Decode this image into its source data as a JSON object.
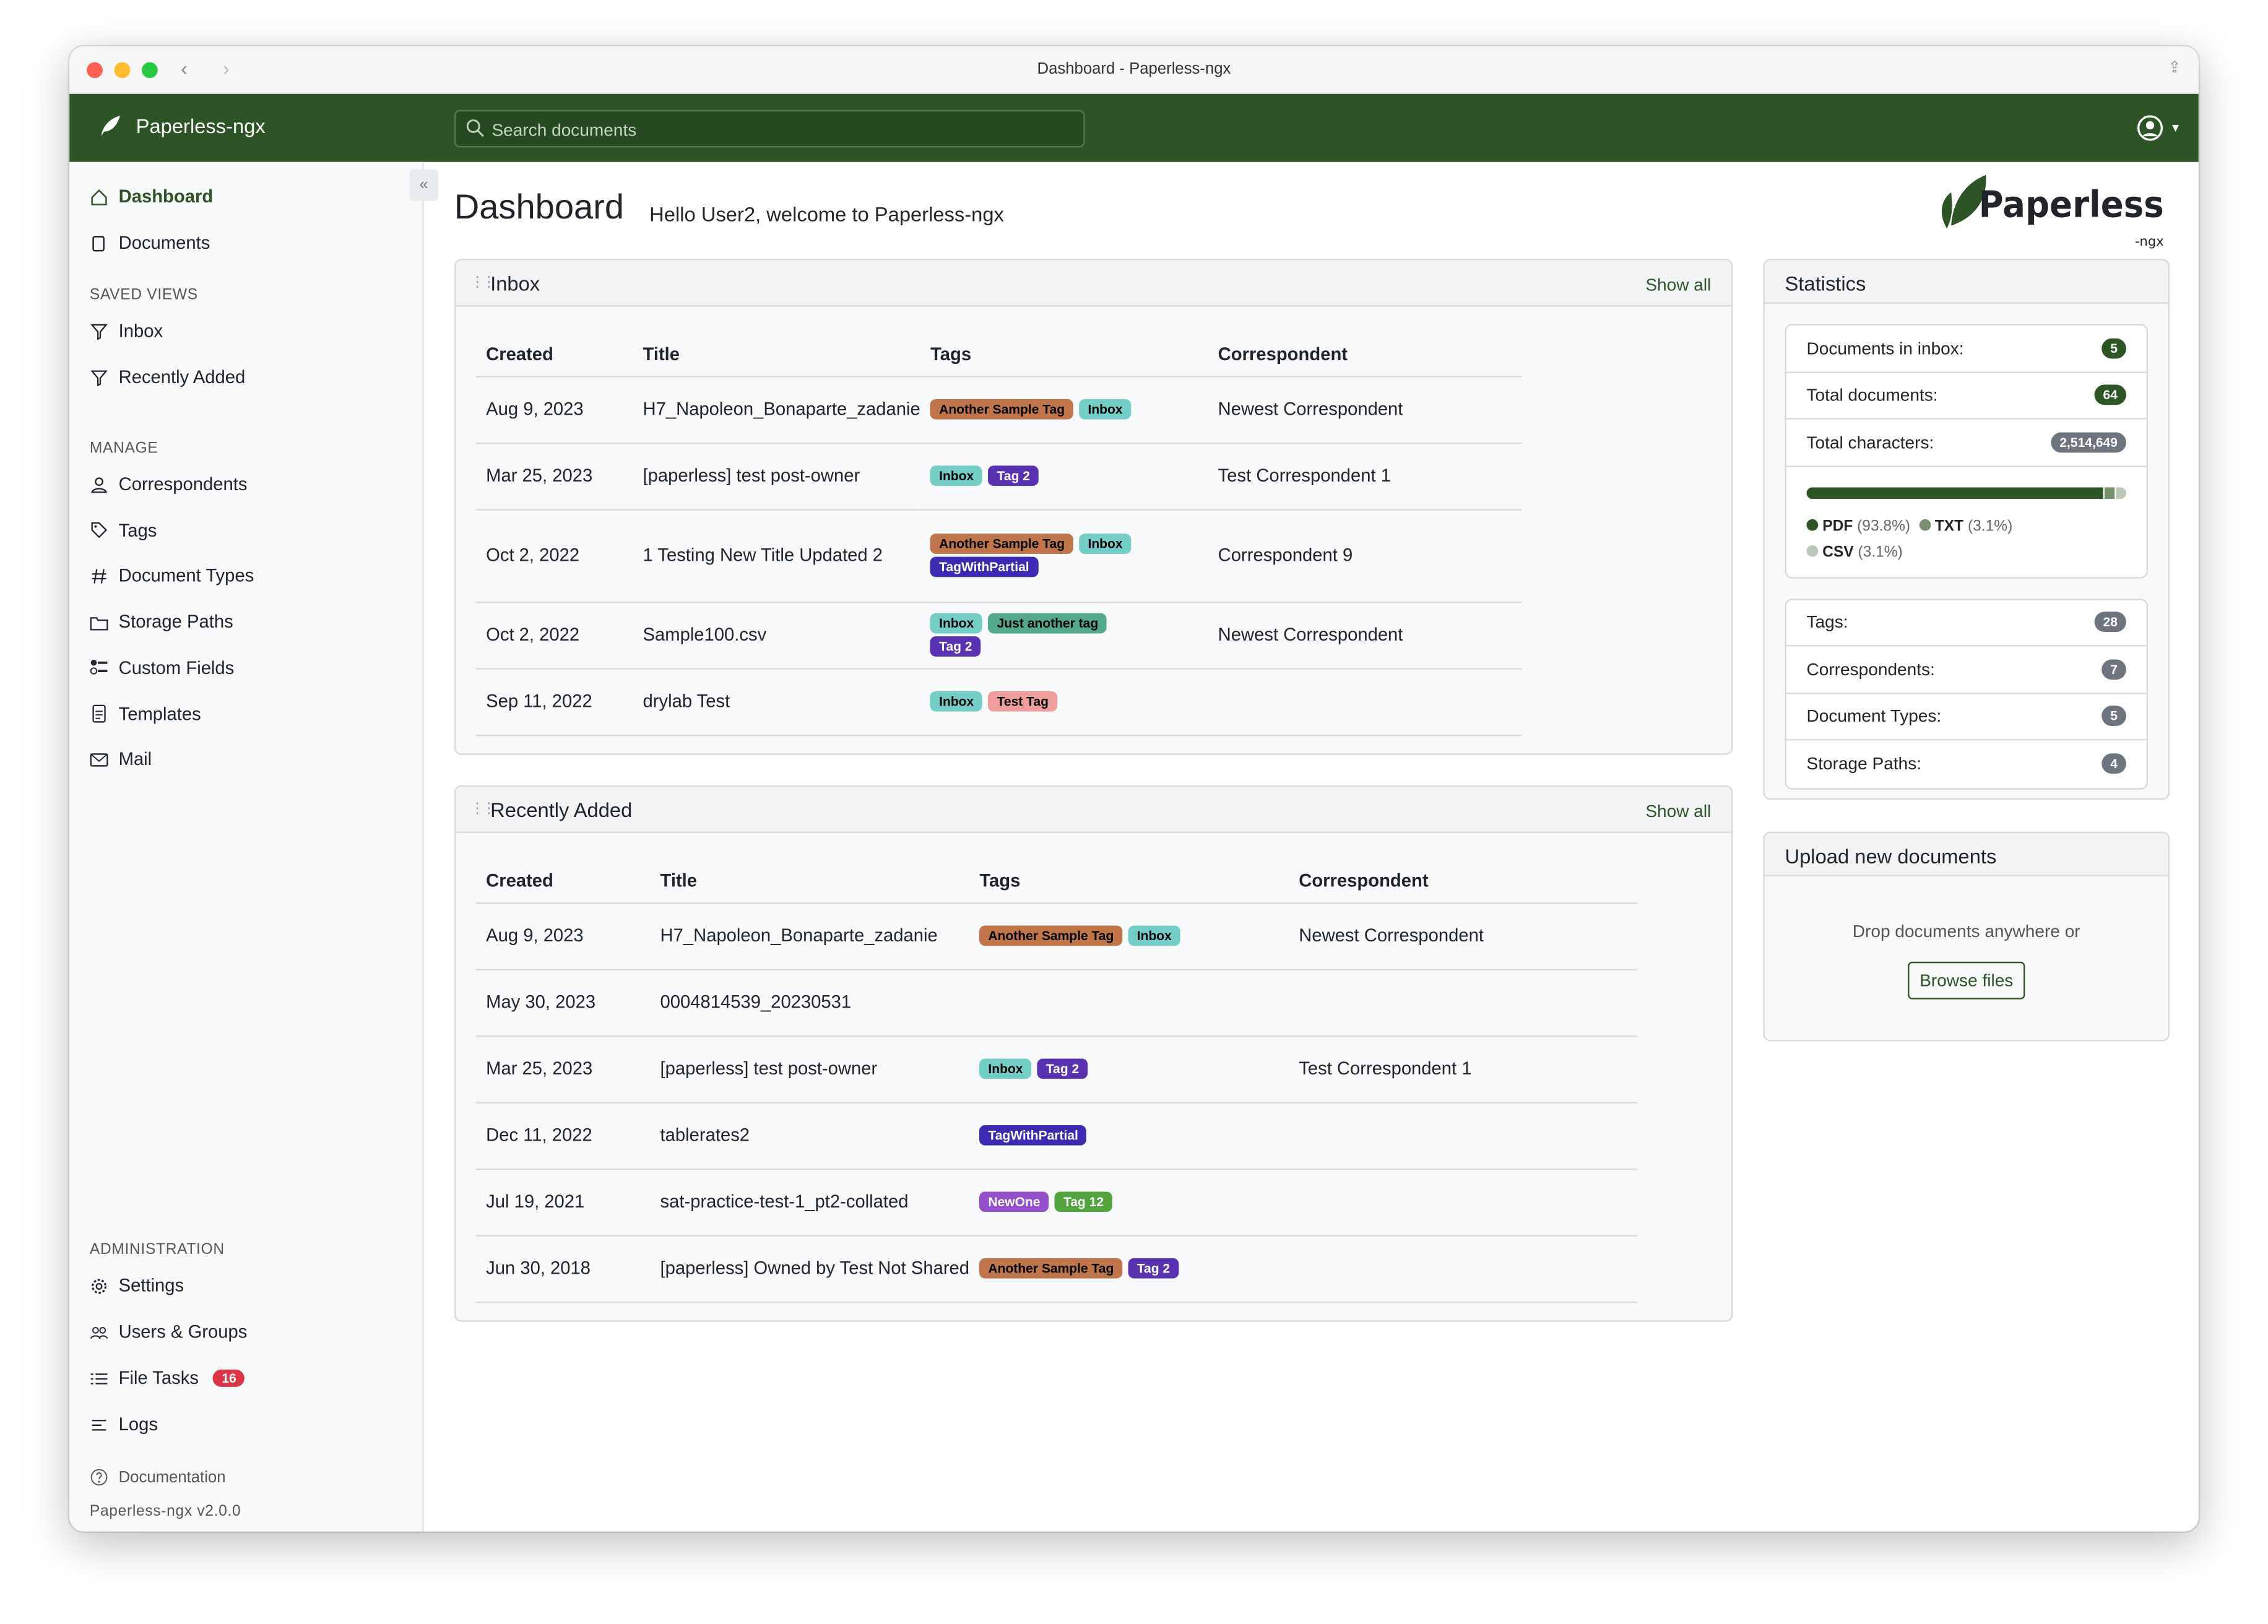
{
  "window": {
    "title": "Dashboard - Paperless-ngx"
  },
  "header": {
    "brand": "Paperless-ngx",
    "search_placeholder": "Search documents"
  },
  "sidebar": {
    "items": [
      {
        "label": "Dashboard",
        "icon": "house-icon",
        "active": true
      },
      {
        "label": "Documents",
        "icon": "files-icon"
      }
    ],
    "saved_views_heading": "SAVED VIEWS",
    "saved_views": [
      {
        "label": "Inbox",
        "icon": "funnel-icon"
      },
      {
        "label": "Recently Added",
        "icon": "funnel-icon"
      }
    ],
    "manage_heading": "MANAGE",
    "manage": [
      {
        "label": "Correspondents",
        "icon": "person-icon"
      },
      {
        "label": "Tags",
        "icon": "tags-icon"
      },
      {
        "label": "Document Types",
        "icon": "hash-icon"
      },
      {
        "label": "Storage Paths",
        "icon": "folder-icon"
      },
      {
        "label": "Custom Fields",
        "icon": "ui-radios-icon"
      },
      {
        "label": "Templates",
        "icon": "file-text-icon"
      },
      {
        "label": "Mail",
        "icon": "envelope-icon"
      }
    ],
    "admin_heading": "ADMINISTRATION",
    "admin": [
      {
        "label": "Settings",
        "icon": "gear-icon"
      },
      {
        "label": "Users & Groups",
        "icon": "people-icon"
      },
      {
        "label": "File Tasks",
        "icon": "list-task-icon",
        "badge": "16"
      },
      {
        "label": "Logs",
        "icon": "text-left-icon"
      }
    ],
    "documentation": "Documentation",
    "version": "Paperless-ngx v2.0.0"
  },
  "main": {
    "title": "Dashboard",
    "welcome": "Hello User2, welcome to Paperless-ngx",
    "logo_text": "Paperless",
    "logo_sub": "-ngx"
  },
  "tag_colors": {
    "Another Sample Tag": {
      "bg": "#c0754a",
      "fg": "#000000"
    },
    "Inbox": {
      "bg": "#72cec7",
      "fg": "#000000"
    },
    "Tag 2": {
      "bg": "#5a31b0",
      "fg": "#ffffff"
    },
    "TagWithPartial": {
      "bg": "#3a2bb0",
      "fg": "#ffffff"
    },
    "Just another tag": {
      "bg": "#52a98e",
      "fg": "#000000"
    },
    "Test Tag": {
      "bg": "#ef9e9c",
      "fg": "#000000"
    },
    "NewOne": {
      "bg": "#954ecb",
      "fg": "#ffffff"
    },
    "Tag 12": {
      "bg": "#51a33e",
      "fg": "#ffffff"
    }
  },
  "inbox": {
    "title": "Inbox",
    "show_all": "Show all",
    "columns": [
      "Created",
      "Title",
      "Tags",
      "Correspondent"
    ],
    "rows": [
      {
        "created": "Aug 9, 2023",
        "title": "H7_Napoleon_Bonaparte_zadanie",
        "tags": [
          "Another Sample Tag",
          "Inbox"
        ],
        "correspondent": "Newest Correspondent"
      },
      {
        "created": "Mar 25, 2023",
        "title": "[paperless] test post-owner",
        "tags": [
          "Inbox",
          "Tag 2"
        ],
        "correspondent": "Test Correspondent 1"
      },
      {
        "created": "Oct 2, 2022",
        "title": "1 Testing New Title Updated 2",
        "tags": [
          "Another Sample Tag",
          "Inbox",
          "TagWithPartial"
        ],
        "correspondent": "Correspondent 9"
      },
      {
        "created": "Oct 2, 2022",
        "title": "Sample100.csv",
        "tags": [
          "Inbox",
          "Just another tag",
          "Tag 2"
        ],
        "correspondent": "Newest Correspondent"
      },
      {
        "created": "Sep 11, 2022",
        "title": "drylab Test",
        "tags": [
          "Inbox",
          "Test Tag"
        ],
        "correspondent": ""
      }
    ]
  },
  "recent": {
    "title": "Recently Added",
    "show_all": "Show all",
    "columns": [
      "Created",
      "Title",
      "Tags",
      "Correspondent"
    ],
    "rows": [
      {
        "created": "Aug 9, 2023",
        "title": "H7_Napoleon_Bonaparte_zadanie",
        "tags": [
          "Another Sample Tag",
          "Inbox"
        ],
        "correspondent": "Newest Correspondent"
      },
      {
        "created": "May 30, 2023",
        "title": "0004814539_20230531",
        "tags": [],
        "correspondent": ""
      },
      {
        "created": "Mar 25, 2023",
        "title": "[paperless] test post-owner",
        "tags": [
          "Inbox",
          "Tag 2"
        ],
        "correspondent": "Test Correspondent 1"
      },
      {
        "created": "Dec 11, 2022",
        "title": "tablerates2",
        "tags": [
          "TagWithPartial"
        ],
        "correspondent": ""
      },
      {
        "created": "Jul 19, 2021",
        "title": "sat-practice-test-1_pt2-collated",
        "tags": [
          "NewOne",
          "Tag 12"
        ],
        "correspondent": ""
      },
      {
        "created": "Jun 30, 2018",
        "title": "[paperless] Owned by Test Not Shared",
        "tags": [
          "Another Sample Tag",
          "Tag 2"
        ],
        "correspondent": ""
      }
    ]
  },
  "statistics": {
    "title": "Statistics",
    "top": [
      {
        "label": "Documents in inbox:",
        "value": "5",
        "color": "#2c5424"
      },
      {
        "label": "Total documents:",
        "value": "64",
        "color": "#2c5424"
      },
      {
        "label": "Total characters:",
        "value": "2,514,649",
        "color": "#6c757d"
      }
    ],
    "file_types": [
      {
        "name": "PDF",
        "pct": "(93.8%)",
        "value": 93.8,
        "color": "#2c5424"
      },
      {
        "name": "TXT",
        "pct": "(3.1%)",
        "value": 3.1,
        "color": "#76906f"
      },
      {
        "name": "CSV",
        "pct": "(3.1%)",
        "value": 3.1,
        "color": "#b9c9b5"
      }
    ],
    "bottom": [
      {
        "label": "Tags:",
        "value": "28"
      },
      {
        "label": "Correspondents:",
        "value": "7"
      },
      {
        "label": "Document Types:",
        "value": "5"
      },
      {
        "label": "Storage Paths:",
        "value": "4"
      }
    ]
  },
  "upload": {
    "title": "Upload new documents",
    "drop_text": "Drop documents anywhere or",
    "browse": "Browse files"
  }
}
